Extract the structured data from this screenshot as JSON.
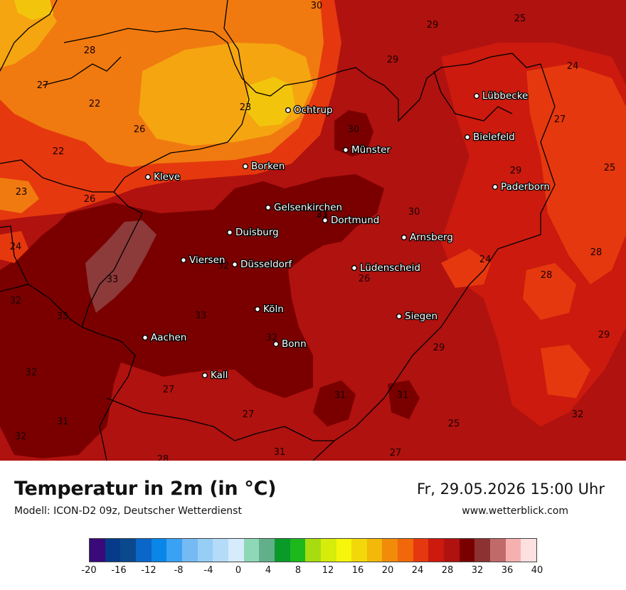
{
  "title": "Temperatur in 2m (in °C)",
  "model": "Modell: ICON-D2 09z, Deutscher Wetterdienst",
  "datetime": "Fr, 29.05.2026 15:00 Uhr",
  "website": "www.wetterblick.com",
  "colors": {
    "base": "#b0120f",
    "hot": "#7a0000",
    "warm": "#cc1a0e",
    "mild": "#e6380e",
    "cool": "#f07a10",
    "cooler": "#f5a510",
    "cool_yellow": "#f2c50c",
    "grey_hot": "#8c3a3a",
    "border": "#000000"
  },
  "cities": [
    {
      "name": "Lübbecke"
    },
    {
      "name": "Ochtrup"
    },
    {
      "name": "Bielefeld"
    },
    {
      "name": "Münster"
    },
    {
      "name": "Kleve"
    },
    {
      "name": "Borken"
    },
    {
      "name": "Paderborn"
    },
    {
      "name": "Gelsenkirchen"
    },
    {
      "name": "Dortmund"
    },
    {
      "name": "Duisburg"
    },
    {
      "name": "Arnsberg"
    },
    {
      "name": "Viersen"
    },
    {
      "name": "Düsseldorf"
    },
    {
      "name": "Lüdenscheid"
    },
    {
      "name": "Köln"
    },
    {
      "name": "Siegen"
    },
    {
      "name": "Aachen"
    },
    {
      "name": "Bonn"
    },
    {
      "name": "Kall"
    }
  ],
  "isolines": [
    "30",
    "29",
    "25",
    "28",
    "29",
    "24",
    "27",
    "22",
    "23",
    "26",
    "27",
    "22",
    "30",
    "29",
    "25",
    "23",
    "23",
    "26",
    "30",
    "31",
    "24",
    "28",
    "24",
    "28",
    "33",
    "32",
    "33",
    "32",
    "26",
    "32",
    "29",
    "32",
    "27",
    "31",
    "31",
    "25",
    "27",
    "29",
    "32",
    "31",
    "28",
    "31",
    "27",
    "33",
    "32"
  ],
  "scale": {
    "colors": [
      "#3a0a7a",
      "#063a8a",
      "#0a4a8c",
      "#0a66c8",
      "#0a86e8",
      "#3aa2f2",
      "#76baf4",
      "#96cef6",
      "#b4dcf8",
      "#d6ecfc",
      "#8ed8b8",
      "#62b08a",
      "#0a9a2a",
      "#1cb81c",
      "#a6dc10",
      "#d6ec0a",
      "#f6f60a",
      "#f2d80a",
      "#f2b80a",
      "#f28a0a",
      "#f0680a",
      "#e6380e",
      "#cc1a0e",
      "#b0120f",
      "#7a0000",
      "#8c3232",
      "#c06a6a",
      "#f6b0b0",
      "#fde0e0"
    ],
    "ticks": [
      "-20",
      "-16",
      "-12",
      "-8",
      "-4",
      "0",
      "4",
      "8",
      "12",
      "16",
      "20",
      "24",
      "28",
      "32",
      "36",
      "40"
    ]
  }
}
